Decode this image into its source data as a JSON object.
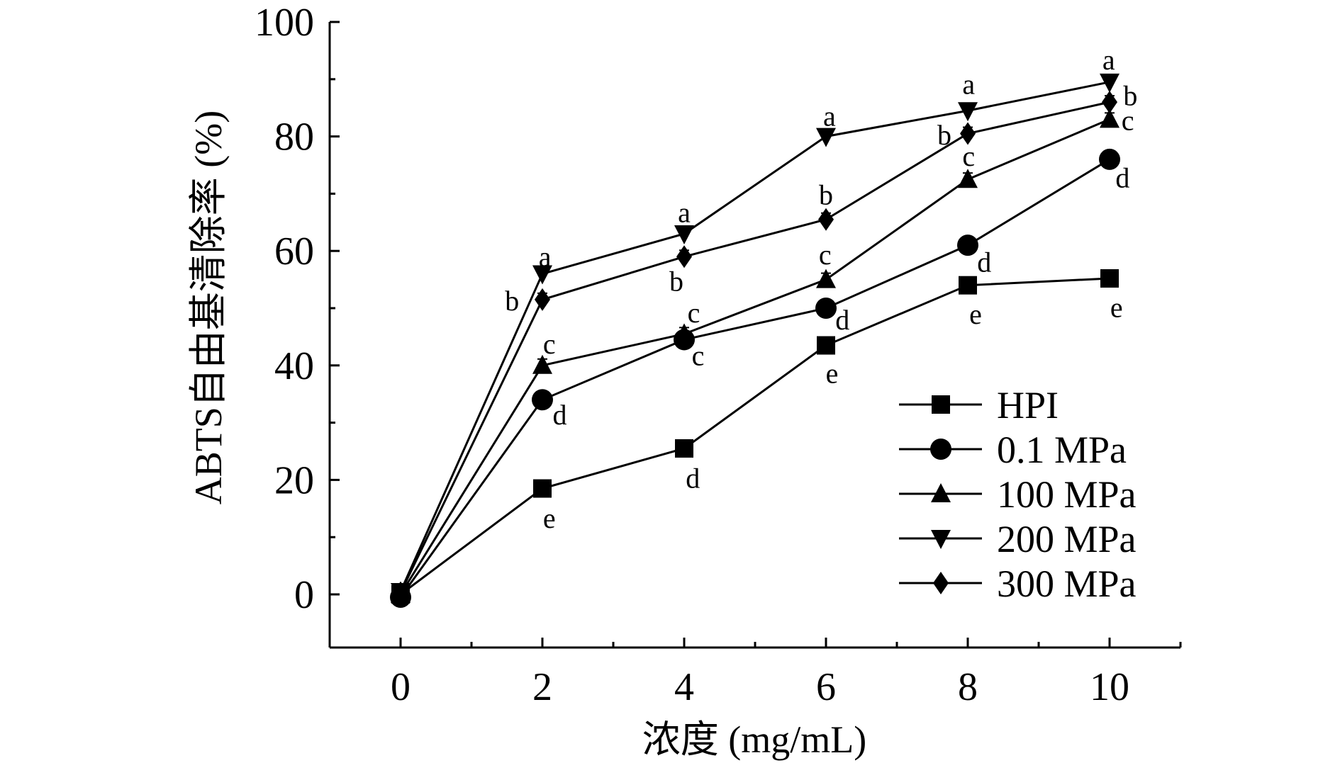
{
  "chart_data": {
    "type": "line",
    "title": "",
    "xlabel": "浓度 (mg/mL)",
    "ylabel": "ABTS自由基清除率 (%)",
    "x": [
      0,
      2,
      4,
      6,
      8,
      10
    ],
    "xlim": [
      -0.5,
      11.2
    ],
    "ylim": [
      -9.3,
      100
    ],
    "xticks": [
      "0",
      "2",
      "4",
      "6",
      "8",
      "10"
    ],
    "yticks": [
      "0",
      "20",
      "40",
      "60",
      "80",
      "100"
    ],
    "grid": false,
    "legend_position": "lower-right",
    "series": [
      {
        "name": "HPI",
        "marker": "square",
        "values": [
          0,
          18.5,
          25.5,
          43.5,
          54,
          55.2
        ],
        "letters": [
          "",
          "e",
          "d",
          "e",
          "e",
          "e"
        ]
      },
      {
        "name": "0.1 MPa",
        "marker": "circle",
        "values": [
          -0.5,
          34,
          44.5,
          50,
          61,
          76
        ],
        "letters": [
          "",
          "d",
          "c",
          "d",
          "d",
          "d"
        ]
      },
      {
        "name": "100 MPa",
        "marker": "triangle-up",
        "values": [
          0,
          40,
          45.5,
          55,
          72.5,
          83
        ],
        "letters": [
          "",
          "c",
          "c",
          "c",
          "c",
          "c"
        ]
      },
      {
        "name": "200 MPa",
        "marker": "triangle-down",
        "values": [
          0.5,
          56,
          63,
          80,
          84.5,
          89.5
        ],
        "letters": [
          "",
          "a",
          "a",
          "a",
          "a",
          "a"
        ]
      },
      {
        "name": "300 MPa",
        "marker": "diamond",
        "values": [
          0.3,
          51.5,
          59,
          65.5,
          80.5,
          86
        ],
        "letters": [
          "",
          "b",
          "b",
          "b",
          "b",
          "b"
        ]
      }
    ]
  }
}
